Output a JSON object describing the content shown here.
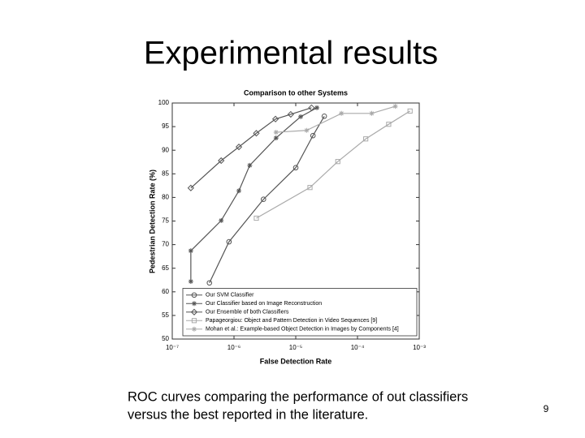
{
  "title": "Experimental results",
  "caption": [
    "ROC curves comparing the performance of out classifiers",
    "versus the best reported in the literature."
  ],
  "page_number": "9",
  "chart_data": {
    "type": "line",
    "title": "Comparison to other Systems",
    "xlabel": "False Detection Rate",
    "ylabel": "Pedestrian Detection Rate (%)",
    "xscale": "log",
    "xlim": [
      1e-07,
      0.001
    ],
    "xticks": [
      {
        "value": 1e-07,
        "label": "10⁻⁷"
      },
      {
        "value": 1e-06,
        "label": "10⁻⁶"
      },
      {
        "value": 1e-05,
        "label": "10⁻⁵"
      },
      {
        "value": 0.0001,
        "label": "10⁻⁴"
      },
      {
        "value": 0.001,
        "label": "10⁻³"
      }
    ],
    "ylim": [
      50,
      100
    ],
    "yticks": [
      50,
      55,
      60,
      65,
      70,
      75,
      80,
      85,
      90,
      95,
      100
    ],
    "legend": "lower right",
    "series": [
      {
        "name": "Our SVM Classifier",
        "color": "#555555",
        "marker": "o",
        "x": [
          4e-07,
          8.3e-07,
          3e-06,
          1e-05,
          1.9e-05,
          2.9e-05
        ],
        "values": [
          61.9,
          70.6,
          79.6,
          86.3,
          93.1,
          97.2
        ]
      },
      {
        "name": "Our Classifier based on Image Reconstruction",
        "color": "#555555",
        "marker": "*",
        "x": [
          2e-07,
          2e-07,
          6.2e-07,
          1.2e-06,
          1.8e-06,
          4.8e-06,
          1.2e-05,
          2.2e-05
        ],
        "values": [
          62.2,
          68.7,
          75.1,
          81.4,
          86.8,
          92.6,
          97.1,
          99.0
        ]
      },
      {
        "name": "Our Ensemble of both Classifiers",
        "color": "#555555",
        "marker": "d",
        "x": [
          2e-07,
          6.2e-07,
          1.2e-06,
          2.3e-06,
          4.7e-06,
          8.3e-06,
          1.8e-05
        ],
        "values": [
          82.0,
          87.8,
          90.7,
          93.6,
          96.6,
          97.6,
          99.0
        ]
      },
      {
        "name": "Papageorgiou: Object and Pattern Detection in Video Sequences [9]",
        "color": "#aaaaaa",
        "marker": "s",
        "x": [
          2.3e-06,
          1.7e-05,
          4.8e-05,
          0.000136,
          0.00032,
          0.00071
        ],
        "values": [
          75.6,
          82.1,
          87.6,
          92.4,
          95.5,
          98.3
        ]
      },
      {
        "name": "Mohan et al.: Example-based Object Detection in Images by Components [4]",
        "color": "#aaaaaa",
        "marker": "*",
        "x": [
          4.8e-06,
          1.5e-05,
          5.5e-05,
          0.00017,
          0.00041
        ],
        "values": [
          93.8,
          94.2,
          97.8,
          97.8,
          99.3
        ]
      }
    ]
  }
}
